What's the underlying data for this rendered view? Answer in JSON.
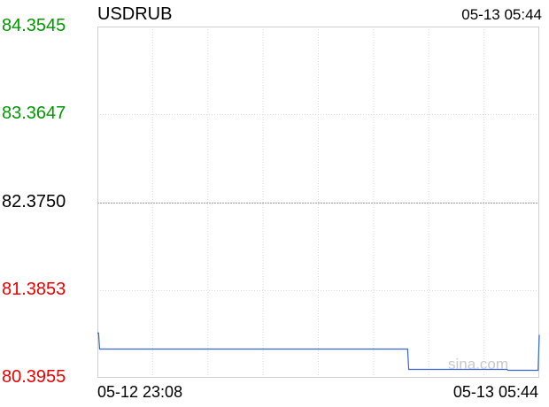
{
  "header": {
    "symbol": "USDRUB",
    "timestamp": "05-13 05:44"
  },
  "watermark": "sina.com",
  "colors": {
    "line": "#3366cc",
    "up": "#009900",
    "down": "#ee0000",
    "base": "#000000",
    "grid": "#d9d9d9"
  },
  "chart_data": {
    "type": "line",
    "title": "USDRUB",
    "x_tick_labels": [
      "05-12 23:08",
      "05-13 05:44"
    ],
    "y_ticks": [
      {
        "value": 84.3545,
        "label": "84.3545",
        "tone": "up"
      },
      {
        "value": 83.3647,
        "label": "83.3647",
        "tone": "up"
      },
      {
        "value": 82.375,
        "label": "82.3750",
        "tone": "base"
      },
      {
        "value": 81.3853,
        "label": "81.3853",
        "tone": "down"
      },
      {
        "value": 80.3955,
        "label": "80.3955",
        "tone": "down"
      }
    ],
    "ylim": [
      80.3955,
      84.3545
    ],
    "xlim": [
      0,
      396
    ],
    "grid": true,
    "series": [
      {
        "points": [
          [
            0,
            80.9
          ],
          [
            1,
            80.9
          ],
          [
            2,
            80.72
          ],
          [
            100,
            80.72
          ],
          [
            200,
            80.72
          ],
          [
            278,
            80.72
          ],
          [
            279,
            80.49
          ],
          [
            350,
            80.49
          ],
          [
            367,
            80.49
          ],
          [
            368,
            80.48
          ],
          [
            394,
            80.48
          ],
          [
            395,
            80.48
          ],
          [
            396,
            80.88
          ]
        ]
      }
    ]
  }
}
